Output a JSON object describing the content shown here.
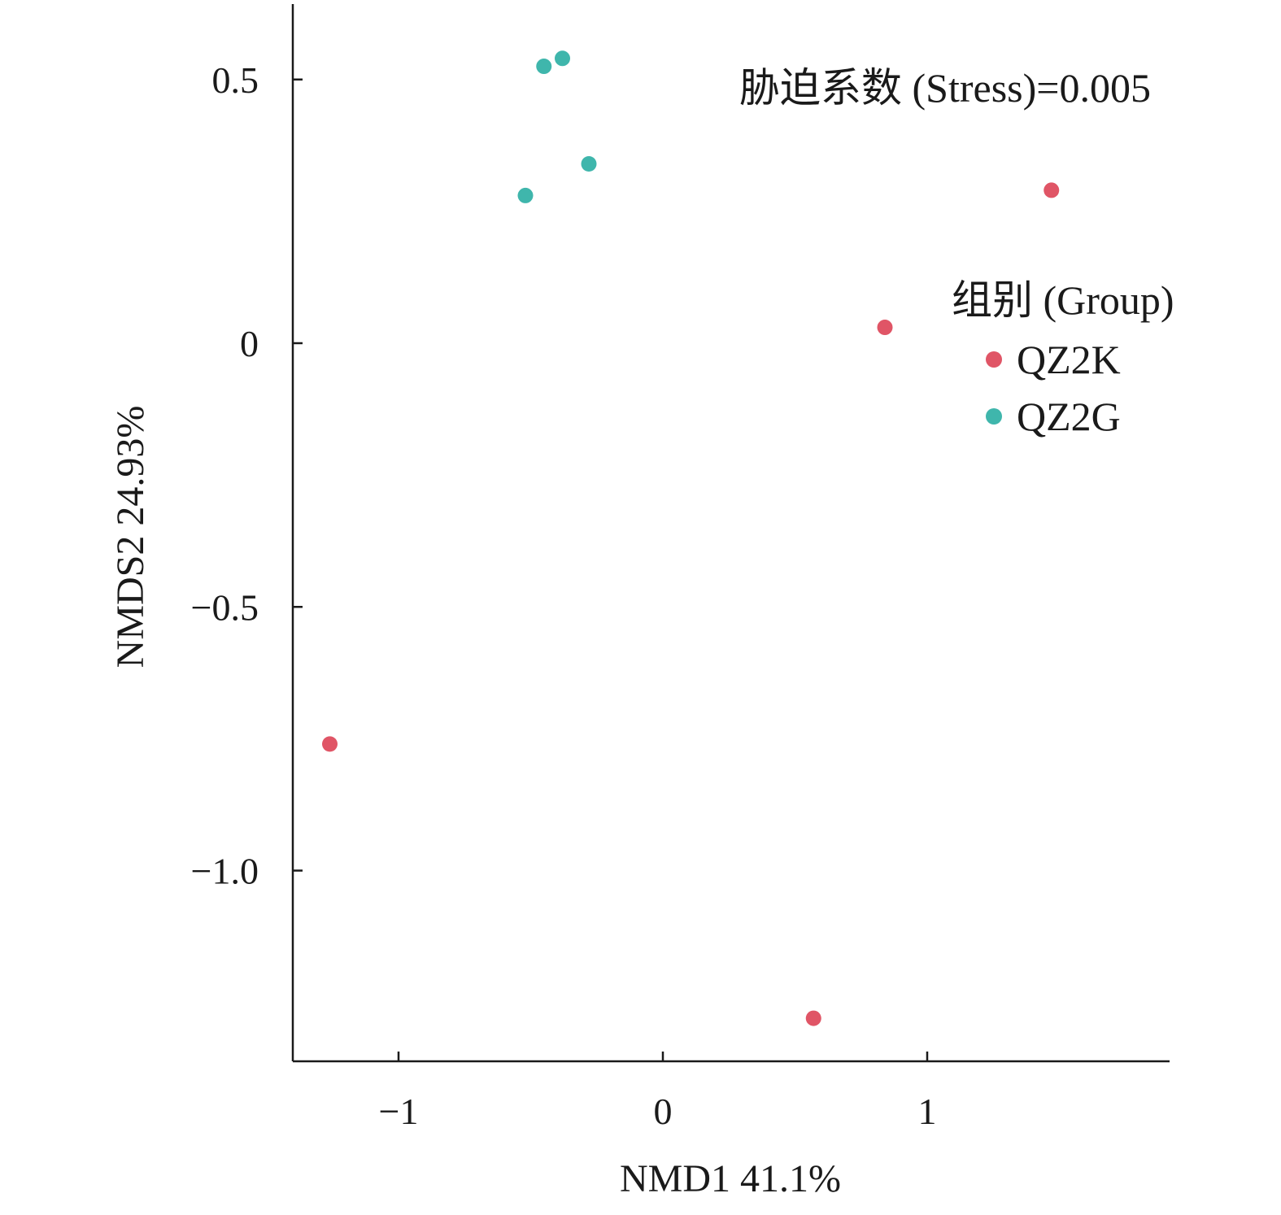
{
  "chart_data": {
    "type": "scatter",
    "title": "",
    "xlabel": "NMD1 41.1%",
    "ylabel": "NMDS2 24.93%",
    "xlim": [
      -1.4,
      1.9
    ],
    "ylim": [
      -1.36,
      0.64
    ],
    "x_ticks": [
      -1,
      0,
      1
    ],
    "x_tick_labels": [
      "−1",
      "0",
      "1"
    ],
    "y_ticks": [
      0.5,
      0,
      -0.5,
      -1.0
    ],
    "y_tick_labels": [
      "0.5",
      "0",
      "−0.5",
      "−1.0"
    ],
    "grid": false,
    "annotation": "胁迫系数 (Stress)=0.005",
    "legend": {
      "title": "组别 (Group)",
      "placement": "right",
      "entries": [
        "QZ2K",
        "QZ2G"
      ]
    },
    "series": [
      {
        "name": "QZ2K",
        "color": "#e05566",
        "points": [
          {
            "x": 1.47,
            "y": 0.29
          },
          {
            "x": 0.84,
            "y": 0.03
          },
          {
            "x": -1.26,
            "y": -0.76
          },
          {
            "x": 0.57,
            "y": -1.28
          }
        ]
      },
      {
        "name": "QZ2G",
        "color": "#3fb6ac",
        "points": [
          {
            "x": -0.45,
            "y": 0.525
          },
          {
            "x": -0.38,
            "y": 0.54
          },
          {
            "x": -0.28,
            "y": 0.34
          },
          {
            "x": -0.52,
            "y": 0.28
          }
        ]
      }
    ]
  }
}
